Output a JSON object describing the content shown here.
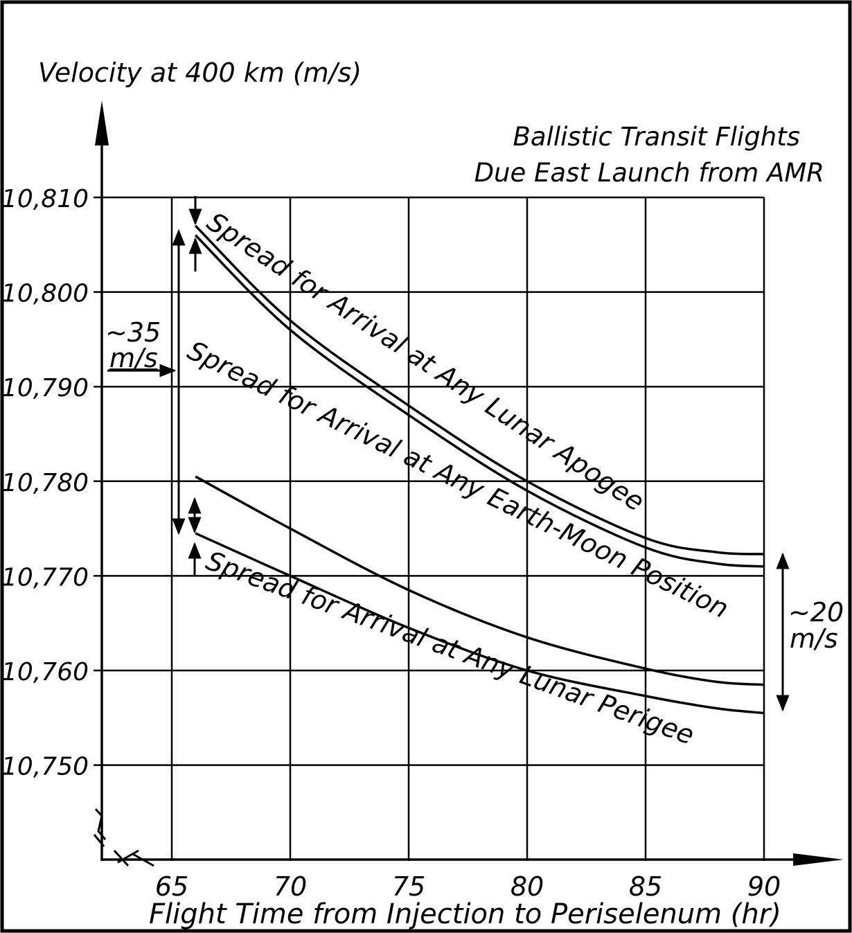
{
  "chart_data": {
    "type": "line",
    "title": "",
    "annotation_title": [
      "Ballistic Transit Flights",
      "Due East Launch from AMR"
    ],
    "xlabel": "Flight Time from Injection to Periselenum (hr)",
    "ylabel": "Velocity at 400 km (m/s)",
    "xlim": [
      63,
      90
    ],
    "ylim": [
      10740,
      10810
    ],
    "x_ticks": [
      65,
      70,
      75,
      80,
      85,
      90
    ],
    "x_tick_labels": [
      "65",
      "70",
      "75",
      "80",
      "85",
      "90"
    ],
    "y_ticks": [
      10810,
      10800,
      10790,
      10780,
      10770,
      10760,
      10750
    ],
    "y_tick_labels": [
      "10,810",
      "10,800",
      "10,790",
      "10,780",
      "10,770",
      "10,760",
      "10,750"
    ],
    "grid": true,
    "series": [
      {
        "x": [
          66,
          70,
          75,
          80,
          85,
          88,
          90
        ],
        "y": [
          10807,
          10797,
          10788,
          10780,
          10774,
          10772.5,
          10772.3
        ]
      },
      {
        "x": [
          66,
          70,
          75,
          80,
          85,
          88,
          90
        ],
        "y": [
          10806,
          10796,
          10787,
          10779,
          10773,
          10771.3,
          10771
        ]
      },
      {
        "x": [
          66,
          70,
          75,
          80,
          85,
          88,
          90
        ],
        "y": [
          10780.5,
          10775,
          10768.5,
          10763.5,
          10760.2,
          10758.8,
          10758.5
        ]
      },
      {
        "x": [
          66,
          70,
          75,
          80,
          85,
          88,
          90
        ],
        "y": [
          10774.5,
          10770,
          10764.5,
          10760,
          10757.3,
          10756,
          10755.5
        ]
      }
    ],
    "annotations": [
      "Spread for Arrival at Any Lunar Apogee",
      "Spread for Arrival at Any Earth-Moon Position",
      "Spread for Arrival at Any Lunar Perigee"
    ],
    "spread_labels": {
      "left": [
        "~35",
        "m/s"
      ],
      "right": [
        "~20",
        "m/s"
      ]
    }
  }
}
